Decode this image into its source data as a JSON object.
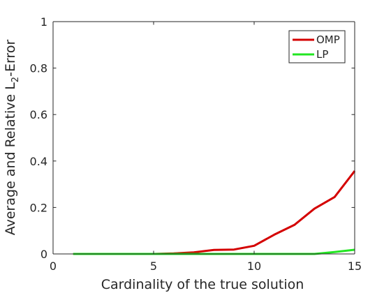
{
  "chart_data": {
    "type": "line",
    "title": "",
    "xlabel": "Cardinality of the true solution",
    "ylabel": "Average and Relative L2-Error",
    "ylabel_parts": {
      "before": "Average and Relative L",
      "subscript": "2",
      "after": "-Error"
    },
    "xlim": [
      0,
      15
    ],
    "ylim": [
      0,
      1
    ],
    "xticks": [
      0,
      5,
      10,
      15
    ],
    "xtick_labels": [
      "0",
      "5",
      "10",
      "15"
    ],
    "yticks": [
      0,
      0.2,
      0.4,
      0.6,
      0.8,
      1
    ],
    "ytick_labels": [
      "0",
      "0.2",
      "0.4",
      "0.6",
      "0.8",
      "1"
    ],
    "grid": false,
    "legend_position": "top-right",
    "x": [
      1,
      2,
      3,
      4,
      5,
      6,
      7,
      8,
      9,
      10,
      11,
      12,
      13,
      14,
      15
    ],
    "series": [
      {
        "name": "OMP",
        "color": "#d40000",
        "values": [
          0,
          0,
          0,
          0,
          0,
          0.002,
          0.007,
          0.017,
          0.019,
          0.035,
          0.083,
          0.125,
          0.195,
          0.245,
          0.357
        ]
      },
      {
        "name": "LP",
        "color": "#22e622",
        "values": [
          0,
          0,
          0,
          0,
          0,
          0,
          0,
          0,
          0,
          0,
          0,
          0,
          0,
          0.008,
          0.018
        ]
      }
    ]
  }
}
